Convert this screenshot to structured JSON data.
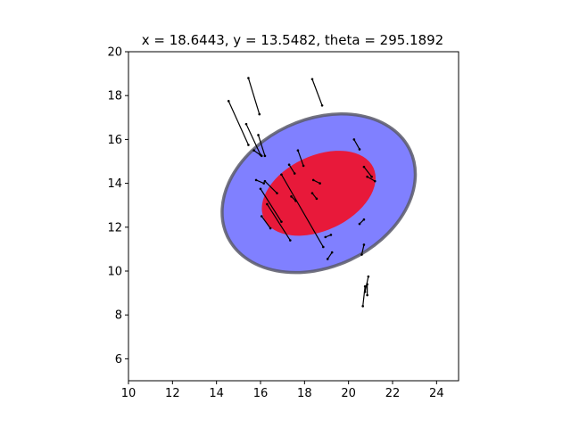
{
  "chart_data": {
    "type": "scatter",
    "title": "x = 18.6443, y = 13.5482, theta = 295.1892",
    "xlabel": "",
    "ylabel": "",
    "xlim": [
      10,
      25
    ],
    "ylim": [
      5,
      20
    ],
    "x_ticks": [
      10,
      12,
      14,
      16,
      18,
      20,
      22,
      24
    ],
    "y_ticks": [
      6,
      8,
      10,
      12,
      14,
      16,
      18,
      20
    ],
    "grid": false,
    "ellipses": [
      {
        "role": "outer",
        "center": [
          18.6443,
          13.5482
        ],
        "width": 6.7,
        "height": 9.2,
        "angle_deg": 295.1892,
        "fill": "#8080ff",
        "edge": "#5a5a6a",
        "edge_alpha": 0.85
      },
      {
        "role": "inner",
        "center": [
          18.6443,
          13.5482
        ],
        "width": 3.4,
        "height": 5.5,
        "angle_deg": 295.1892,
        "fill": "#e8193a",
        "edge": "none",
        "edge_alpha": 0
      }
    ],
    "segments": [
      {
        "start": [
          14.55,
          17.75
        ],
        "end": [
          15.45,
          15.75
        ]
      },
      {
        "start": [
          15.45,
          18.8
        ],
        "end": [
          15.95,
          17.15
        ]
      },
      {
        "start": [
          18.35,
          18.75
        ],
        "end": [
          18.8,
          17.55
        ]
      },
      {
        "start": [
          15.35,
          16.7
        ],
        "end": [
          16.0,
          15.3
        ]
      },
      {
        "start": [
          15.9,
          16.2
        ],
        "end": [
          16.2,
          15.25
        ]
      },
      {
        "start": [
          15.7,
          15.5
        ],
        "end": [
          16.05,
          15.25
        ]
      },
      {
        "start": [
          17.7,
          15.5
        ],
        "end": [
          17.95,
          14.8
        ]
      },
      {
        "start": [
          17.3,
          14.85
        ],
        "end": [
          17.55,
          14.45
        ]
      },
      {
        "start": [
          18.4,
          14.15
        ],
        "end": [
          18.7,
          14.0
        ]
      },
      {
        "start": [
          20.25,
          16.0
        ],
        "end": [
          20.5,
          15.55
        ]
      },
      {
        "start": [
          20.7,
          14.75
        ],
        "end": [
          21.05,
          14.3
        ]
      },
      {
        "start": [
          20.85,
          14.3
        ],
        "end": [
          21.2,
          14.1
        ]
      },
      {
        "start": [
          15.8,
          14.15
        ],
        "end": [
          16.15,
          14.0
        ]
      },
      {
        "start": [
          16.2,
          14.1
        ],
        "end": [
          16.75,
          13.55
        ]
      },
      {
        "start": [
          16.0,
          13.75
        ],
        "end": [
          16.95,
          12.25
        ]
      },
      {
        "start": [
          16.3,
          13.05
        ],
        "end": [
          17.35,
          11.4
        ]
      },
      {
        "start": [
          16.95,
          14.4
        ],
        "end": [
          18.85,
          11.1
        ]
      },
      {
        "start": [
          17.4,
          13.4
        ],
        "end": [
          17.6,
          13.2
        ]
      },
      {
        "start": [
          18.35,
          13.55
        ],
        "end": [
          18.55,
          13.3
        ]
      },
      {
        "start": [
          16.05,
          12.5
        ],
        "end": [
          16.45,
          11.95
        ]
      },
      {
        "start": [
          20.5,
          12.15
        ],
        "end": [
          20.7,
          12.35
        ]
      },
      {
        "start": [
          18.95,
          11.55
        ],
        "end": [
          19.2,
          11.65
        ]
      },
      {
        "start": [
          19.05,
          10.55
        ],
        "end": [
          19.25,
          10.85
        ]
      },
      {
        "start": [
          20.6,
          10.75
        ],
        "end": [
          20.7,
          11.2
        ]
      },
      {
        "start": [
          20.75,
          9.05
        ],
        "end": [
          20.9,
          9.75
        ]
      },
      {
        "start": [
          20.65,
          8.4
        ],
        "end": [
          20.75,
          9.3
        ]
      },
      {
        "start": [
          20.85,
          9.4
        ],
        "end": [
          20.85,
          8.9
        ]
      }
    ]
  }
}
